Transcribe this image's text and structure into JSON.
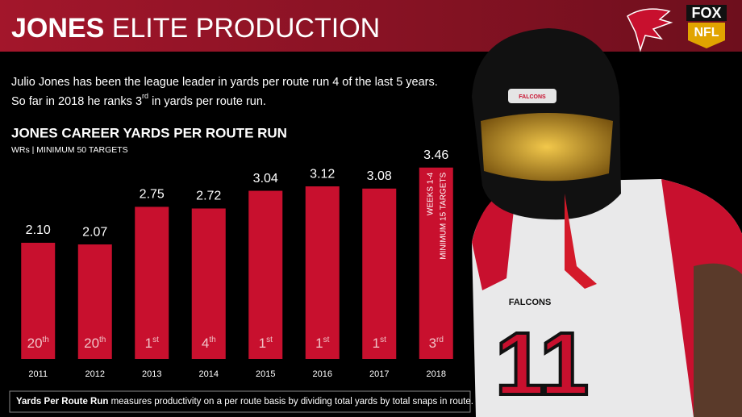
{
  "header": {
    "title_bold": "JONES",
    "title_rest": "ELITE PRODUCTION",
    "logo_network": "FOX",
    "logo_league": "NFL"
  },
  "intro": {
    "line1": "Julio Jones has been the league leader in yards per route run 4 of the last 5 years.",
    "line2_a": "So far in 2018 he ranks 3",
    "line2_sup": "rd",
    "line2_b": " in yards per route run."
  },
  "chart_data": {
    "type": "bar",
    "title": "JONES CAREER YARDS PER ROUTE RUN",
    "subtitle": "WRs | MINIMUM 50 TARGETS",
    "categories": [
      "2011",
      "2012",
      "2013",
      "2014",
      "2015",
      "2016",
      "2017",
      "2018"
    ],
    "values": [
      2.1,
      2.07,
      2.75,
      2.72,
      3.04,
      3.12,
      3.08,
      3.46
    ],
    "value_labels": [
      "2.10",
      "2.07",
      "2.75",
      "2.72",
      "3.04",
      "3.12",
      "3.08",
      "3.46"
    ],
    "ranks": [
      "20",
      "20",
      "1",
      "4",
      "1",
      "1",
      "1",
      "3"
    ],
    "rank_suffixes": [
      "th",
      "th",
      "st",
      "th",
      "st",
      "st",
      "st",
      "rd"
    ],
    "annotation": [
      "WEEKS 1-4",
      "MINIMUM 15 TARGETS"
    ],
    "color": "#c8102e",
    "ylim": [
      0,
      3.5
    ]
  },
  "footnote": {
    "term": "Yards Per Route Run",
    "text": " measures productivity on a per route basis by dividing total yards by total snaps in route."
  },
  "player": {
    "jersey_text": "FALCONS",
    "number": "11"
  }
}
